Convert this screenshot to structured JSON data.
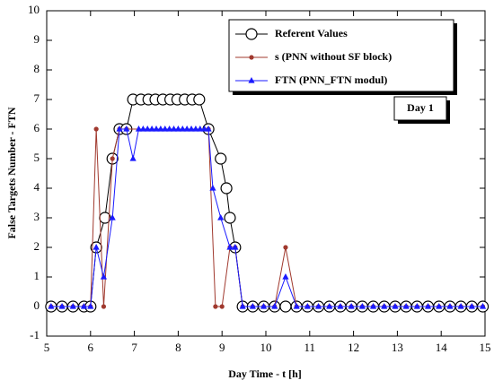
{
  "chart_data": {
    "type": "line",
    "xlabel": "Day Time - t [h]",
    "ylabel": "False Targets Number - FTN",
    "annotation": "Day 1",
    "xlim": [
      5,
      15
    ],
    "xticks": [
      5,
      6,
      7,
      8,
      9,
      10,
      11,
      12,
      13,
      14,
      15
    ],
    "ylim": [
      -1,
      10
    ],
    "yticks": [
      -1,
      0,
      1,
      2,
      3,
      4,
      5,
      6,
      7,
      8,
      9,
      10
    ],
    "legend": "upper right",
    "series": [
      {
        "name": "Referent Values",
        "color": "#000000",
        "marker": "circle",
        "x": [
          5.1,
          5.35,
          5.6,
          5.85,
          6.0,
          6.13,
          6.33,
          6.5,
          6.66,
          6.82,
          6.97,
          7.15,
          7.32,
          7.48,
          7.65,
          7.82,
          7.98,
          8.15,
          8.32,
          8.48,
          8.69,
          8.97,
          9.1,
          9.18,
          9.3,
          9.47,
          9.7,
          9.95,
          10.2,
          10.45,
          10.7,
          10.95,
          11.2,
          11.45,
          11.7,
          11.95,
          12.2,
          12.45,
          12.7,
          12.95,
          13.2,
          13.45,
          13.7,
          13.95,
          14.2,
          14.45,
          14.7,
          14.95
        ],
        "values": [
          0,
          0,
          0,
          0,
          0,
          2,
          3,
          5,
          6,
          6,
          7,
          7,
          7,
          7,
          7,
          7,
          7,
          7,
          7,
          7,
          6,
          5,
          4,
          3,
          2,
          0,
          0,
          0,
          0,
          0,
          0,
          0,
          0,
          0,
          0,
          0,
          0,
          0,
          0,
          0,
          0,
          0,
          0,
          0,
          0,
          0,
          0,
          0
        ]
      },
      {
        "name": "s (PNN without SF block)",
        "color": "#a0392e",
        "marker": "dot",
        "x": [
          5.1,
          5.35,
          5.6,
          5.85,
          6.0,
          6.13,
          6.3,
          6.5,
          6.66,
          6.82,
          8.69,
          8.85,
          9.0,
          9.18,
          9.3,
          9.47,
          9.7,
          9.95,
          10.2,
          10.45,
          10.7,
          10.95,
          11.2,
          11.45,
          11.7,
          11.95,
          12.2,
          12.45,
          12.7,
          12.95,
          13.2,
          13.45,
          13.7,
          13.95,
          14.2,
          14.45,
          14.7,
          14.95
        ],
        "values": [
          0,
          0,
          0,
          0,
          0,
          6,
          0,
          5,
          6,
          6,
          6,
          0,
          0,
          2,
          2,
          0,
          0,
          0,
          0,
          2,
          0,
          0,
          0,
          0,
          0,
          0,
          0,
          0,
          0,
          0,
          0,
          0,
          0,
          0,
          0,
          0,
          0,
          0
        ]
      },
      {
        "name": "FTN (PNN_FTN  modul)",
        "color": "#1a1aff",
        "marker": "triangle",
        "x": [
          5.1,
          5.35,
          5.6,
          5.85,
          6.0,
          6.13,
          6.3,
          6.5,
          6.66,
          6.82,
          6.97,
          7.1,
          7.2,
          7.3,
          7.4,
          7.5,
          7.6,
          7.7,
          7.8,
          7.9,
          8.0,
          8.1,
          8.2,
          8.3,
          8.4,
          8.5,
          8.6,
          8.69,
          8.79,
          8.97,
          9.18,
          9.3,
          9.47,
          9.7,
          9.95,
          10.2,
          10.45,
          10.7,
          10.95,
          11.2,
          11.45,
          11.7,
          11.95,
          12.2,
          12.45,
          12.7,
          12.95,
          13.2,
          13.45,
          13.7,
          13.95,
          14.2,
          14.45,
          14.7,
          14.95
        ],
        "values": [
          0,
          0,
          0,
          0,
          0,
          2,
          1,
          3,
          6,
          6,
          5,
          6,
          6,
          6,
          6,
          6,
          6,
          6,
          6,
          6,
          6,
          6,
          6,
          6,
          6,
          6,
          6,
          6,
          4,
          3,
          2,
          2,
          0,
          0,
          0,
          0,
          1,
          0,
          0,
          0,
          0,
          0,
          0,
          0,
          0,
          0,
          0,
          0,
          0,
          0,
          0,
          0,
          0,
          0,
          0
        ]
      }
    ]
  }
}
